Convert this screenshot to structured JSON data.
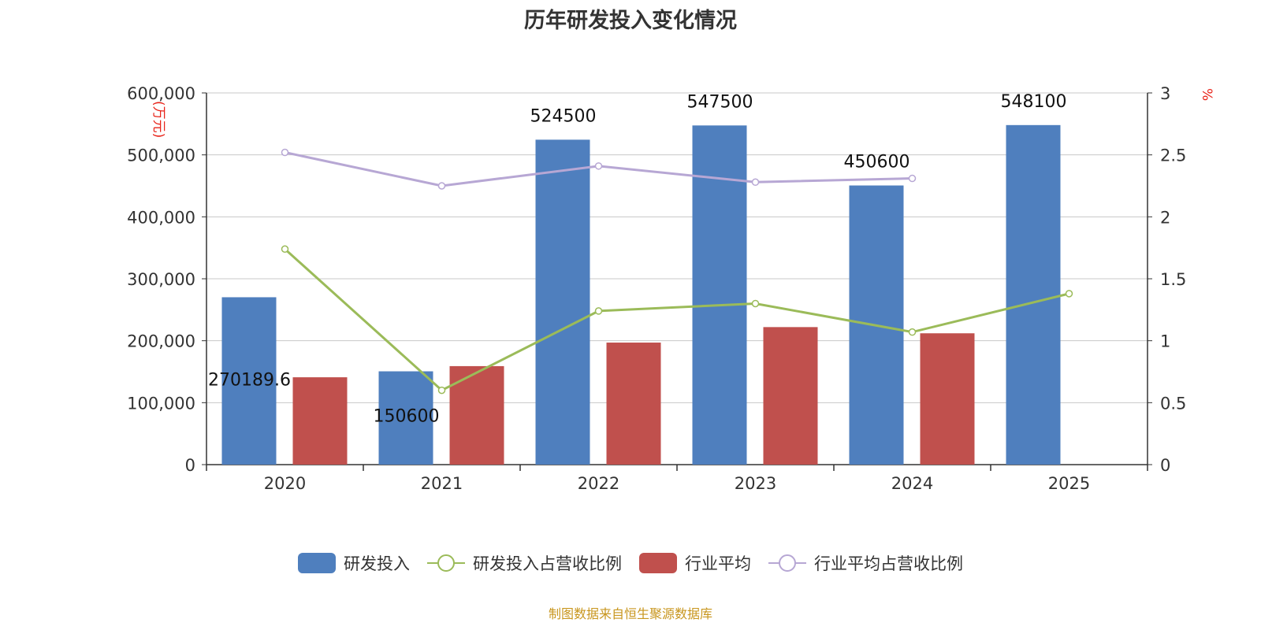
{
  "colors": {
    "rd": "#4f7fbe",
    "industry": "#c0504d",
    "rd_ratio": "#9bbb59",
    "industry_ratio": "#b7a7d4",
    "axis_unit": "#e8241a",
    "footer": "#c8961e"
  },
  "footer": "制图数据来自恒生聚源数据库",
  "chart_data": {
    "type": "bar",
    "title": "历年研发投入变化情况",
    "categories": [
      "2020",
      "2021",
      "2022",
      "2023",
      "2024",
      "2025"
    ],
    "y_left": {
      "label": "万元",
      "ylim": [
        0,
        600000
      ],
      "ticks": [
        "0",
        "100,000",
        "200,000",
        "300,000",
        "400,000",
        "500,000",
        "600,000"
      ]
    },
    "y_right": {
      "label": "%",
      "ylim": [
        0,
        3
      ],
      "ticks": [
        "0",
        "0.5",
        "1",
        "1.5",
        "2",
        "2.5",
        "3"
      ]
    },
    "grid": true,
    "legend_position": "bottom",
    "series": [
      {
        "name": "研发投入",
        "type": "bar",
        "axis": "left",
        "values": [
          270189.6,
          150600,
          524500,
          547500,
          450600,
          548100
        ],
        "labels": [
          "270189.6",
          "150600",
          "524500",
          "547500",
          "450600",
          "548100"
        ]
      },
      {
        "name": "研发投入占营收比例",
        "type": "line",
        "axis": "right",
        "values": [
          1.74,
          0.6,
          1.24,
          1.3,
          1.07,
          1.38
        ]
      },
      {
        "name": "行业平均",
        "type": "bar",
        "axis": "left",
        "values": [
          141000,
          159000,
          197000,
          222000,
          212000,
          null
        ]
      },
      {
        "name": "行业平均占营收比例",
        "type": "line",
        "axis": "right",
        "values": [
          2.52,
          2.25,
          2.41,
          2.28,
          2.31,
          null
        ]
      }
    ]
  }
}
